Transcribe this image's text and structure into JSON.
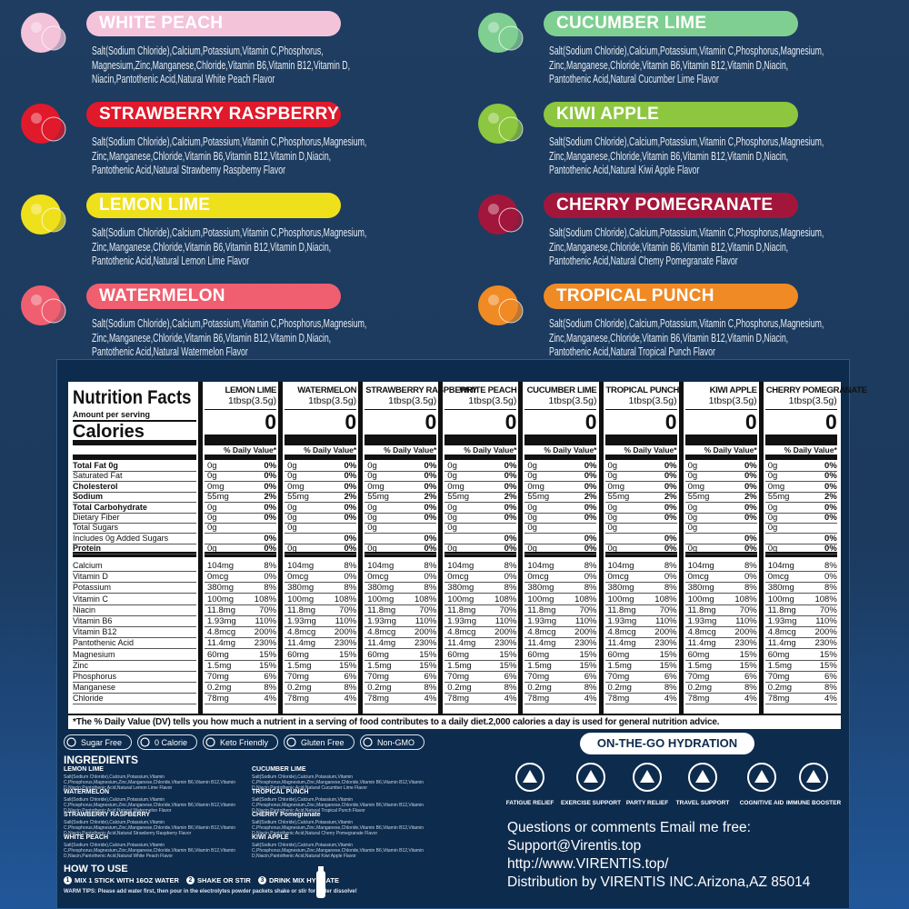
{
  "flavors": [
    {
      "name": "WHITE PEACH",
      "color": "#f3c3da",
      "text": "Salt(Sodium Chloride),Calcium,Potassium,Vitamin C,Phosphorus,\nMagnesium,Zinc,Manganese,Chloride,Vitamin B6,Vitamin B12,Vitamin D,\nNiacin,Pantothenic Acid,Natural White Peach Flavor"
    },
    {
      "name": "CUCUMBER LIME",
      "color": "#80cf92",
      "text": "Salt(Sodium Chloride),Calcium,Potassium,Vitamin C,Phosphorus,Magnesium,\nZinc,Manganese,Chloride,Vitamin B6,Vitamin B12,Vitamin D,Niacin,\nPantothenic Acid,Natural Cucumber Lime Flavor"
    },
    {
      "name": "STRAWBERRY RASPBERRY",
      "color": "#e0192b",
      "text": "Salt(Sodium Chloride),Calcium,Potassium,Vitamin C,Phosphorus,Magnesium,\nZinc,Manganese,Chloride,Vitamin B6,Vitamin B12,Vitamin D,Niacin,\nPantothenic Acid,Natural Strawbemy Raspbemy Flavor"
    },
    {
      "name": "KIWI APPLE",
      "color": "#8dc63f",
      "text": "Salt(Sodium Chloride),Calcium,Potassium,Vitamin C,Phosphorus,Magnesium,\nZinc,Manganese,Chloride,Vitamin B6,Vitamin B12,Vitamin D,Niacin,\nPantothenic Acid,Natural Kiwi Apple Flavor"
    },
    {
      "name": "LEMON LIME",
      "color": "#efe01c",
      "text": "Salt(Sodium Chloride),Calcium,Potassium,Vitamin C,Phosphorus,Magnesium,\nZinc,Manganese,Chloride,Vitamin B6,Vitamin B12,Vitamin D,Niacin,\nPantothenic Acid,Natural Lemon Lime Flavor"
    },
    {
      "name": "CHERRY POMEGRANATE",
      "color": "#a3163b",
      "text": "Salt(Sodium Chloride),Calcium,Potassium,Vitamin C,Phosphorus,Magnesium,\nZinc,Manganese,Chloride,Vitamin B6,Vitamin B12,Vitamin D,Niacin,\nPantothenic Acid,Natural Chemy Pomegranate Flavor"
    },
    {
      "name": "WATERMELON",
      "color": "#ef5f70",
      "text": "Salt(Sodium Chloride),Calcium,Potassium,Vitamin C,Phosphorus,Magnesium,\nZinc,Manganese,Chloride,Vitamin B6,Vitamin B12,Vitamin D,Niacin,\nPantothenic Acid,Natural Watermelon Flavor"
    },
    {
      "name": "TROPICAL PUNCH",
      "color": "#f08a24",
      "text": "Salt(Sodium Chloride),Calcium,Potassium,Vitamin C,Phosphorus,Magnesium,\nZinc,Manganese,Chloride,Vitamin B6,Vitamin B12,Vitamin D,Niacin,\nPantothenic Acid,Natural Tropical Punch Flavor"
    }
  ],
  "nutrition": {
    "title": "Nutrition Facts",
    "amount_per_serving": "Amount per serving",
    "calories_label": "Calories",
    "dv_header": "% Daily Value*",
    "columns": [
      {
        "name": "LEMON LIME",
        "serving": "1tbsp(3.5g)",
        "calories": 0
      },
      {
        "name": "WATERMELON",
        "serving": "1tbsp(3.5g)",
        "calories": 0
      },
      {
        "name": "STRAWBERRY RASPBERRY",
        "serving": "1tbsp(3.5g)",
        "calories": 0
      },
      {
        "name": "WHITE PEACH",
        "serving": "1tbsp(3.5g)",
        "calories": 0
      },
      {
        "name": "CUCUMBER LIME",
        "serving": "1tbsp(3.5g)",
        "calories": 0
      },
      {
        "name": "TROPICAL PUNCH",
        "serving": "1tbsp(3.5g)",
        "calories": 0
      },
      {
        "name": "KIWI APPLE",
        "serving": "1tbsp(3.5g)",
        "calories": 0
      },
      {
        "name": "CHERRY POMEGRANATE",
        "serving": "1tbsp(3.5g)",
        "calories": 0
      }
    ],
    "macros": [
      {
        "label": "Total Fat 0g",
        "amount": "0g",
        "dv": "0%",
        "bold": true
      },
      {
        "label": "Saturated Fat",
        "amount": "0g",
        "dv": "0%"
      },
      {
        "label": "Cholesterol",
        "amount": "0mg",
        "dv": "0%",
        "bold": true
      },
      {
        "label": "Sodium",
        "amount": "55mg",
        "dv": "2%",
        "bold": true
      },
      {
        "label": "Total Carbohydrate",
        "amount": "0g",
        "dv": "0%",
        "bold": true
      },
      {
        "label": "Dietary Fiber",
        "amount": "0g",
        "dv": "0%"
      },
      {
        "label": "Total Sugars",
        "amount": "0g"
      },
      {
        "label": "Includes 0g Added Sugars",
        "dv": "0%"
      },
      {
        "label": "Protein",
        "amount": "0g",
        "dv": "0%",
        "bold": true
      }
    ],
    "micros": [
      {
        "label": "Calcium",
        "amount": "104mg",
        "dv": "8%"
      },
      {
        "label": "Vitamin D",
        "amount": "0mcg",
        "dv": "0%"
      },
      {
        "label": "Potassium",
        "amount": "380mg",
        "dv": "8%"
      },
      {
        "label": "Vitamin C",
        "amount": "100mg",
        "dv": "108%"
      },
      {
        "label": "Niacin",
        "amount": "11.8mg",
        "dv": "70%"
      },
      {
        "label": "Vitamin B6",
        "amount": "1.93mg",
        "dv": "110%"
      },
      {
        "label": "Vitamin B12",
        "amount": "4.8mcg",
        "dv": "200%"
      },
      {
        "label": "Pantothenic Acid",
        "amount": "11.4mg",
        "dv": "230%"
      },
      {
        "label": "Magnesium",
        "amount": "60mg",
        "dv": "15%"
      },
      {
        "label": "Zinc",
        "amount": "1.5mg",
        "dv": "15%"
      },
      {
        "label": "Phosphorus",
        "amount": "70mg",
        "dv": "6%"
      },
      {
        "label": "Manganese",
        "amount": "0.2mg",
        "dv": "8%"
      },
      {
        "label": "Chloride",
        "amount": "78mg",
        "dv": "4%"
      }
    ],
    "footnote": "*The % Daily Value (DV) tells you how much a nutrient in a serving  of food contributes to a daily diet.2,000 calories a day is used  for general nutrition advice."
  },
  "badges": [
    "Sugar Free",
    "0 Calorie",
    "Keto Friendly",
    "Gluten Free",
    "Non-GMO"
  ],
  "ingredients": {
    "title": "INGREDIENTS",
    "items": [
      {
        "name": "LEMON LIME",
        "text": "Salt(Sodium Chloride),Calcium,Potassium,Vitamin C,Phosphorus,Magnesium,Zinc,Manganese,Chloride,Vitamin B6,Vitamin B12,Vitamin D,Niacin,Pantothenic Acid,Natural Lemon Lime Flavor"
      },
      {
        "name": "WATERMELON",
        "text": "Salt(Sodium Chloride),Calcium,Potassium,Vitamin C,Phosphorus,Magnesium,Zinc,Manganese,Chloride,Vitamin B6,Vitamin B12,Vitamin D,Niacin,Pantothenic Acid,Natural Watermelon Flavor"
      },
      {
        "name": "STRAWBERRY RASPBERRY",
        "text": "Salt(Sodium Chloride),Calcium,Potassium,Vitamin C,Phosphorus,Magnesium,Zinc,Manganese,Chloride,Vitamin B6,Vitamin B12,Vitamin D,Niacin,Pantothenic Acid,Natural Strawberry Raspberry Flavor"
      },
      {
        "name": "WHITE PEACH",
        "text": "Salt(Sodium Chloride),Calcium,Potassium,Vitamin C,Phosphorus,Magnesium,Zinc,Manganese,Chloride,Vitamin B6,Vitamin B12,Vitamin D,Niacin,Pantothenic Acid,Natural White Peach Flavor"
      },
      {
        "name": "CUCUMBER LIME",
        "text": "Salt(Sodium Chloride),Calcium,Potassium,Vitamin C,Phosphorus,Magnesium,Zinc,Manganese,Chloride,Vitamin B6,Vitamin B12,Vitamin D,Niacin,Pantothenic Acid,Natural Cucumber Lime Flavor"
      },
      {
        "name": "TROPICAL PUNCH",
        "text": "Salt(Sodium Chloride),Calcium,Potassium,Vitamin C,Phosphorus,Magnesium,Zinc,Manganese,Chloride,Vitamin B6,Vitamin B12,Vitamin D,Niacin,Pantothenic Acid,Natural Tropical Punch Flavor"
      },
      {
        "name": "CHERRY Pomegranate",
        "text": "Salt(Sodium Chloride),Calcium,Potassium,Vitamin C,Phosphorus,Magnesium,Zinc,Manganese,Chloride,Vitamin B6,Vitamin B12,Vitamin D,Niacin,Pantothenic Acid,Natural Cherry Pomegranate Flavor"
      },
      {
        "name": "KIWI APPLE",
        "text": "Salt(Sodium Chloride),Calcium,Potassium,Vitamin C,Phosphorus,Magnesium,Zinc,Manganese,Chloride,Vitamin B6,Vitamin B12,Vitamin D,Niacin,Pantothenic Acid,Natural Kiwi Apple Flavor"
      }
    ]
  },
  "how_to_use": {
    "title": "HOW TO USE",
    "steps": [
      {
        "number": "1",
        "text": "MIX 1 STICK WITH 16OZ WATER"
      },
      {
        "number": "2",
        "text": "SHAKE OR STIR"
      },
      {
        "number": "3",
        "text": "DRINK MIX HYDRATE"
      }
    ],
    "tips": "WARM TIPS: Please add water first, then pour in the electrolytes powder packets shake or stir for faster dissolve!"
  },
  "hydration": {
    "title": "ON-THE-GO HYDRATION",
    "benefits": [
      "FATIGUE RELIEF",
      "EXERCISE SUPPORT",
      "PARTY RELIEF",
      "TRAVEL SUPPORT",
      "COGNITIVE AID",
      "IMMUNE BOOSTER"
    ]
  },
  "contact": [
    "Questions or comments Email me free:",
    "Support@Virentis.top",
    "http://www.VIRENTIS.top/",
    "Distribution by VIRENTIS INC.Arizona,AZ 85014"
  ]
}
